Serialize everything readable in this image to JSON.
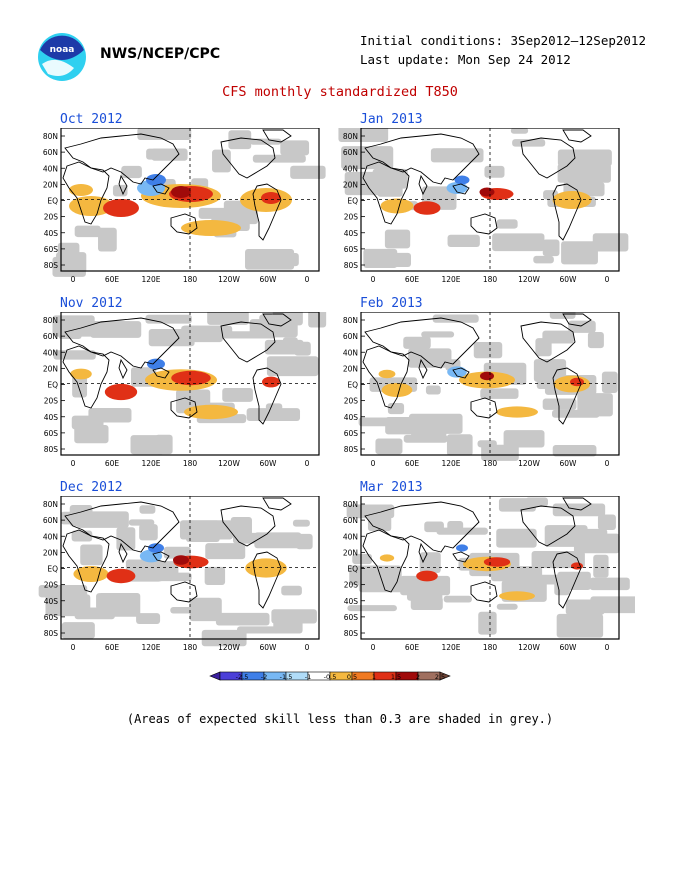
{
  "header": {
    "org": "NWS/NCEP/CPC",
    "initial_conditions": "Initial conditions: 3Sep2012–12Sep2012",
    "last_update": "Last update: Mon Sep 24 2012",
    "logo_text": "noaa"
  },
  "title": "CFS monthly standardized T850",
  "panels": [
    {
      "label": "Oct 2012"
    },
    {
      "label": "Jan 2013"
    },
    {
      "label": "Nov 2012"
    },
    {
      "label": "Feb 2013"
    },
    {
      "label": "Dec 2012"
    },
    {
      "label": "Mar 2013"
    }
  ],
  "lat_labels": [
    "80N",
    "60N",
    "40N",
    "20N",
    "EQ",
    "20S",
    "40S",
    "60S",
    "80S"
  ],
  "lon_labels": [
    "0",
    "60E",
    "120E",
    "180",
    "120W",
    "60W",
    "0"
  ],
  "colorbar": {
    "labels": [
      "-2.5",
      "-2",
      "-1.5",
      "-1",
      "-0.5",
      "0.5",
      "1",
      "1.5",
      "2",
      "2.5"
    ],
    "colors": [
      "#3a1f9e",
      "#4b3fd8",
      "#3f7fe8",
      "#78b8f4",
      "#b0dcf8",
      "#ffffff",
      "#f4b840",
      "#f07a22",
      "#e03016",
      "#a00a0a",
      "#a07060",
      "#6e4436"
    ]
  },
  "footnote": "(Areas of expected skill less than 0.3 are shaded in grey.)"
}
